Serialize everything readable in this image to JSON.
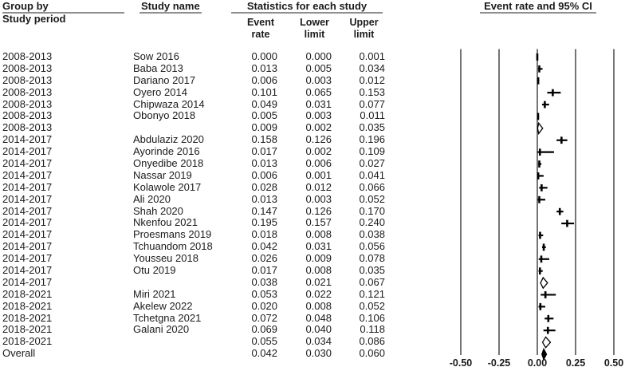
{
  "header": {
    "group_by": "Group by",
    "group_by_sub": "Study period",
    "study_name": "Study name",
    "statistics": "Statistics for each study",
    "col_event": "Event rate",
    "col_lower": "Lower limit",
    "col_upper": "Upper limit",
    "plot_title": "Event rate and 95% CI"
  },
  "chart_data": {
    "type": "forest",
    "title": "Event rate and 95% CI",
    "xlim": [
      -0.5,
      0.5
    ],
    "grid": "vertical-lines",
    "x_ticks": [
      {
        "label": "-0.50",
        "value": -0.5
      },
      {
        "label": "-0.25",
        "value": -0.25
      },
      {
        "label": "0.00",
        "value": 0.0
      },
      {
        "label": "0.25",
        "value": 0.25
      },
      {
        "label": "0.50",
        "value": 0.5
      }
    ],
    "columns": [
      "Group by / Study period",
      "Study name",
      "Event rate",
      "Lower limit",
      "Upper limit"
    ],
    "rows": [
      {
        "group": "2008-2013",
        "study": "Sow 2016",
        "rate": "0.000",
        "lower": "0.000",
        "upper": "0.001",
        "kind": "study"
      },
      {
        "group": "2008-2013",
        "study": "Baba 2013",
        "rate": "0.013",
        "lower": "0.005",
        "upper": "0.034",
        "kind": "study"
      },
      {
        "group": "2008-2013",
        "study": "Dariano 2017",
        "rate": "0.006",
        "lower": "0.003",
        "upper": "0.012",
        "kind": "study"
      },
      {
        "group": "2008-2013",
        "study": "Oyero 2014",
        "rate": "0.101",
        "lower": "0.065",
        "upper": "0.153",
        "kind": "study"
      },
      {
        "group": "2008-2013",
        "study": "Chipwaza 2014",
        "rate": "0.049",
        "lower": "0.031",
        "upper": "0.077",
        "kind": "study"
      },
      {
        "group": "2008-2013",
        "study": "Obonyo 2018",
        "rate": "0.005",
        "lower": "0.003",
        "upper": "0.011",
        "kind": "study"
      },
      {
        "group": "2008-2013",
        "study": "",
        "rate": "0.009",
        "lower": "0.002",
        "upper": "0.035",
        "kind": "subtotal"
      },
      {
        "group": "2014-2017",
        "study": "Abdulaziz 2020",
        "rate": "0.158",
        "lower": "0.126",
        "upper": "0.196",
        "kind": "study"
      },
      {
        "group": "2014-2017",
        "study": "Ayorinde 2016",
        "rate": "0.017",
        "lower": "0.002",
        "upper": "0.109",
        "kind": "study"
      },
      {
        "group": "2014-2017",
        "study": "Onyedibe 2018",
        "rate": "0.013",
        "lower": "0.006",
        "upper": "0.027",
        "kind": "study"
      },
      {
        "group": "2014-2017",
        "study": "Nassar 2019",
        "rate": "0.006",
        "lower": "0.001",
        "upper": "0.041",
        "kind": "study"
      },
      {
        "group": "2014-2017",
        "study": "Kolawole 2017",
        "rate": "0.028",
        "lower": "0.012",
        "upper": "0.066",
        "kind": "study"
      },
      {
        "group": "2014-2017",
        "study": "Ali 2020",
        "rate": "0.013",
        "lower": "0.003",
        "upper": "0.052",
        "kind": "study"
      },
      {
        "group": "2014-2017",
        "study": "Shah 2020",
        "rate": "0.147",
        "lower": "0.126",
        "upper": "0.170",
        "kind": "study"
      },
      {
        "group": "2014-2017",
        "study": "Nkenfou 2021",
        "rate": "0.195",
        "lower": "0.157",
        "upper": "0.240",
        "kind": "study"
      },
      {
        "group": "2014-2017",
        "study": "Proesmans 2019",
        "rate": "0.018",
        "lower": "0.008",
        "upper": "0.038",
        "kind": "study"
      },
      {
        "group": "2014-2017",
        "study": "Tchuandom 2018",
        "rate": "0.042",
        "lower": "0.031",
        "upper": "0.056",
        "kind": "study"
      },
      {
        "group": "2014-2017",
        "study": "Yousseu 2018",
        "rate": "0.026",
        "lower": "0.009",
        "upper": "0.078",
        "kind": "study"
      },
      {
        "group": "2014-2017",
        "study": "Otu 2019",
        "rate": "0.017",
        "lower": "0.008",
        "upper": "0.035",
        "kind": "study"
      },
      {
        "group": "2014-2017",
        "study": "",
        "rate": "0.038",
        "lower": "0.021",
        "upper": "0.067",
        "kind": "subtotal"
      },
      {
        "group": "2018-2021",
        "study": "Miri 2021",
        "rate": "0.053",
        "lower": "0.022",
        "upper": "0.121",
        "kind": "study"
      },
      {
        "group": "2018-2021",
        "study": "Akelew 2022",
        "rate": "0.020",
        "lower": "0.008",
        "upper": "0.052",
        "kind": "study"
      },
      {
        "group": "2018-2021",
        "study": "Tchetgna 2021",
        "rate": "0.072",
        "lower": "0.048",
        "upper": "0.106",
        "kind": "study"
      },
      {
        "group": "2018-2021",
        "study": "Galani 2020",
        "rate": "0.069",
        "lower": "0.040",
        "upper": "0.118",
        "kind": "study"
      },
      {
        "group": "2018-2021",
        "study": "",
        "rate": "0.055",
        "lower": "0.034",
        "upper": "0.086",
        "kind": "subtotal"
      },
      {
        "group": "Overall",
        "study": "",
        "rate": "0.042",
        "lower": "0.030",
        "upper": "0.060",
        "kind": "overall"
      }
    ],
    "colors": {
      "text": "#1b1b1b",
      "gridline": "#222222",
      "marker": "#000000",
      "subtotal_diamond_fill": "#ffffff",
      "overall_diamond_fill": "#000000",
      "header_rule": "#8f8f8f"
    }
  }
}
